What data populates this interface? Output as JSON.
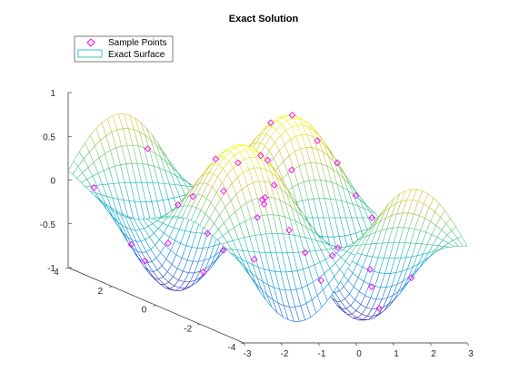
{
  "chart_data": {
    "type": "surface",
    "title": "Exact Solution",
    "xlabel": "",
    "ylabel": "",
    "zlabel": "",
    "xlim": [
      -3,
      3
    ],
    "ylim": [
      -4,
      4
    ],
    "zlim": [
      -1,
      1
    ],
    "x_ticks": [
      "-3",
      "-2",
      "-1",
      "0",
      "1",
      "2",
      "3"
    ],
    "y_ticks": [
      "-4",
      "-2",
      "0",
      "2",
      "4"
    ],
    "z_ticks": [
      "-1",
      "-0.5",
      "0",
      "0.5",
      "1"
    ],
    "legend": {
      "placement": "top-left",
      "entries": [
        {
          "label": "Sample Points",
          "marker": "diamond",
          "color": "#ff00ff"
        },
        {
          "label": "Exact Surface",
          "marker": "line",
          "color": "#00b4b4"
        }
      ]
    },
    "series": [
      {
        "name": "Exact Surface",
        "kind": "mesh",
        "description_function": "z = sin(x) * sin(y)",
        "grid": {
          "x_range": [
            -3,
            3
          ],
          "y_range": [
            -4,
            4
          ],
          "nx": 41,
          "ny": 41
        },
        "colormap": "parula"
      },
      {
        "name": "Sample Points",
        "kind": "scatter3",
        "marker": "diamond",
        "color": "#ff00ff",
        "points": [
          [
            1.6,
            1.6,
            1.0
          ],
          [
            1.2,
            1.9,
            0.88
          ],
          [
            2.1,
            1.3,
            0.74
          ],
          [
            0.5,
            2.2,
            0.39
          ],
          [
            -0.3,
            2.9,
            -0.07
          ],
          [
            2.4,
            0.9,
            0.53
          ],
          [
            2.6,
            0.4,
            0.21
          ],
          [
            2.8,
            0.0,
            0.0
          ],
          [
            1.0,
            0.6,
            0.48
          ],
          [
            0.2,
            0.5,
            0.1
          ],
          [
            -1.2,
            2.5,
            -0.56
          ],
          [
            -0.9,
            1.4,
            -0.77
          ],
          [
            -2.3,
            -3.3,
            -0.12
          ],
          [
            -1.6,
            -2.6,
            0.51
          ],
          [
            -1.0,
            -1.7,
            0.84
          ],
          [
            -2.1,
            -1.2,
            0.8
          ],
          [
            -2.7,
            -0.5,
            0.2
          ],
          [
            -0.5,
            -0.6,
            0.27
          ],
          [
            0.4,
            -0.3,
            -0.11
          ],
          [
            0.3,
            -1.2,
            -0.27
          ],
          [
            -0.6,
            1.0,
            -0.48
          ],
          [
            0.9,
            -0.9,
            -0.62
          ],
          [
            -2.6,
            1.8,
            -0.5
          ],
          [
            -2.0,
            2.2,
            -0.73
          ],
          [
            -0.1,
            0.3,
            -0.03
          ],
          [
            1.4,
            2.7,
            0.42
          ],
          [
            2.2,
            -1.0,
            -0.68
          ],
          [
            1.7,
            -2.2,
            -0.8
          ],
          [
            2.0,
            3.1,
            0.04
          ],
          [
            1.1,
            -2.8,
            -0.29
          ],
          [
            0.7,
            3.2,
            -0.04
          ],
          [
            -1.5,
            0.2,
            -0.2
          ],
          [
            -2.9,
            3.0,
            0.02
          ],
          [
            2.5,
            -2.3,
            -0.44
          ],
          [
            1.5,
            -0.4,
            -0.39
          ],
          [
            -1.1,
            3.6,
            0.4
          ],
          [
            0.0,
            -3.2,
            0.0
          ]
        ]
      }
    ]
  }
}
